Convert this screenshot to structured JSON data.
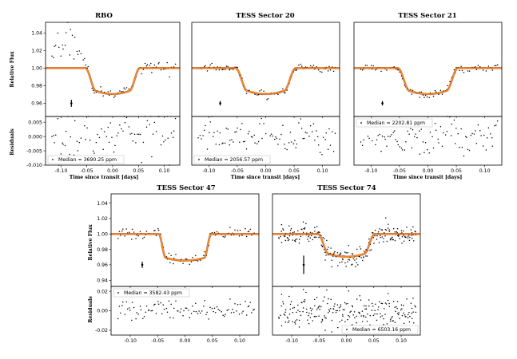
{
  "figure": {
    "colors": {
      "points": "#000000",
      "model": "#ff8c00",
      "model_edge": "#8b0000",
      "frame": "#000000"
    }
  },
  "chart_data": [
    {
      "type": "scatter",
      "title": "RBO",
      "xlabel": "Time since transit [days]",
      "ylabel": "Relative Flux",
      "residual_ylabel": "Residuals",
      "xlim": [
        -0.13,
        0.13
      ],
      "ylim": [
        0.945,
        1.052
      ],
      "residual_ylim": [
        -0.01,
        0.007
      ],
      "xticks": [
        "-0.10",
        "-0.05",
        "0.00",
        "0.05",
        "0.10"
      ],
      "yticks": [
        "0.96",
        "0.98",
        "1.00",
        "1.02",
        "1.04"
      ],
      "residual_yticks": [
        "0.005",
        "0.000",
        "-0.005",
        "-0.010"
      ],
      "show_x_axis": true,
      "show_y_axis": true,
      "legend": "Median = 3690.25 ppm",
      "legend_position": "bottom-left",
      "transit": {
        "depth": 0.026,
        "t1": 0.053,
        "t2": 0.032,
        "errorbar_x": -0.08,
        "errorbar_y": 0.96,
        "errorbar_err": 0.004
      },
      "noise": 0.0037,
      "n_points": 85,
      "excess": true
    },
    {
      "type": "scatter",
      "title": "TESS Sector 20",
      "xlabel": "Time since transit [days]",
      "xlim": [
        -0.13,
        0.13
      ],
      "ylim": [
        0.945,
        1.052
      ],
      "residual_ylim": [
        -0.01,
        0.007
      ],
      "xticks": [
        "-0.10",
        "-0.05",
        "0.00",
        "0.05",
        "0.10"
      ],
      "show_x_axis": true,
      "show_y_axis": false,
      "legend": "Median = 2056.57 ppm",
      "legend_position": "bottom-left",
      "transit": {
        "depth": 0.026,
        "t1": 0.053,
        "t2": 0.032,
        "errorbar_x": -0.08,
        "errorbar_y": 0.96,
        "errorbar_err": 0.0025
      },
      "noise": 0.0021,
      "n_points": 95,
      "excess": false
    },
    {
      "type": "scatter",
      "title": "TESS Sector 21",
      "xlabel": "Time since transit [days]",
      "xlim": [
        -0.13,
        0.13
      ],
      "ylim": [
        0.945,
        1.052
      ],
      "residual_ylim": [
        -0.01,
        0.007
      ],
      "xticks": [
        "-0.10",
        "-0.05",
        "0.00",
        "0.05",
        "0.10"
      ],
      "show_x_axis": true,
      "show_y_axis": false,
      "legend": "Median = 2202.81 ppm",
      "legend_position": "top-left",
      "transit": {
        "depth": 0.026,
        "t1": 0.053,
        "t2": 0.032,
        "errorbar_x": -0.08,
        "errorbar_y": 0.96,
        "errorbar_err": 0.0025
      },
      "noise": 0.0022,
      "n_points": 95,
      "excess": false
    },
    {
      "type": "scatter",
      "title": "TESS Sector 47",
      "ylabel": "Relative Flux",
      "residual_ylabel": "Residuals",
      "xlim": [
        -0.135,
        0.135
      ],
      "ylim": [
        0.932,
        1.052
      ],
      "residual_ylim": [
        -0.025,
        0.025
      ],
      "xticks": [
        "-0.10",
        "-0.05",
        "0.00",
        "0.05",
        "0.10"
      ],
      "yticks": [
        "0.94",
        "0.96",
        "0.98",
        "1.00",
        "1.02",
        "1.04"
      ],
      "residual_yticks": [
        "0.02",
        "0.00",
        "-0.02"
      ],
      "show_x_axis": true,
      "show_y_axis": true,
      "legend": "Median = 3582.43 ppm",
      "legend_position": "top-left",
      "transit": {
        "depth": 0.031,
        "t1": 0.048,
        "t2": 0.035,
        "errorbar_x": -0.078,
        "errorbar_y": 0.96,
        "errorbar_err": 0.004
      },
      "noise": 0.0036,
      "n_points": 100,
      "excess": false
    },
    {
      "type": "scatter",
      "title": "TESS Sector 74",
      "xlim": [
        -0.135,
        0.135
      ],
      "ylim": [
        0.932,
        1.052
      ],
      "residual_ylim": [
        -0.025,
        0.025
      ],
      "xticks": [
        "-0.10",
        "-0.05",
        "0.00",
        "0.05",
        "0.10"
      ],
      "show_x_axis": true,
      "show_y_axis": false,
      "legend": "Median = 6503.16 ppm",
      "legend_position": "bottom-right",
      "transit": {
        "depth": 0.026,
        "t1": 0.052,
        "t2": 0.032,
        "errorbar_x": -0.078,
        "errorbar_y": 0.96,
        "errorbar_err": 0.012
      },
      "noise": 0.0065,
      "n_points": 230,
      "excess": false
    }
  ]
}
